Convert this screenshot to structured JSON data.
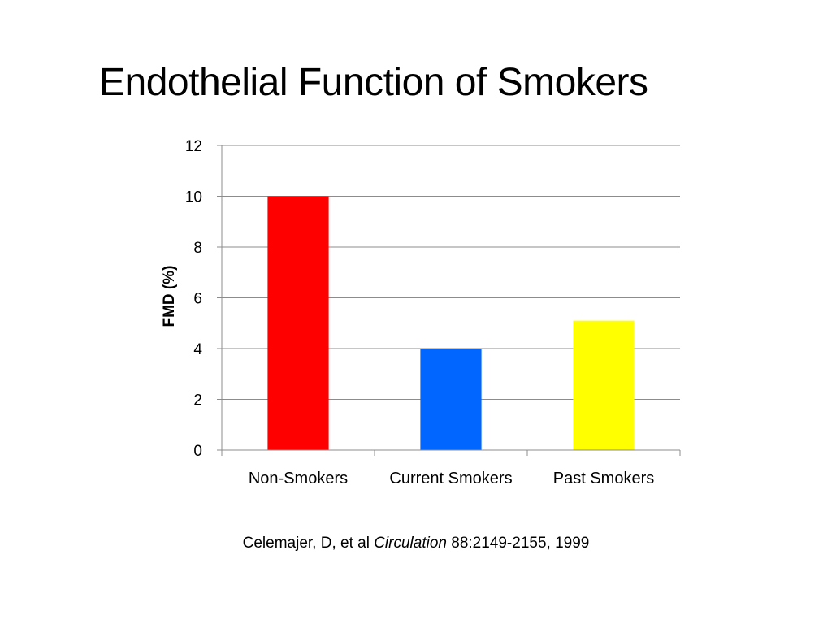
{
  "slide": {
    "title": "Endothelial Function of Smokers"
  },
  "chart_data": {
    "type": "bar",
    "title": "",
    "xlabel": "",
    "ylabel": "FMD (%)",
    "categories": [
      "Non-Smokers",
      "Current Smokers",
      "Past Smokers"
    ],
    "values": [
      10,
      4,
      5.1
    ],
    "colors": [
      "#FF0000",
      "#0066FF",
      "#FFFF00"
    ],
    "ylim": [
      0,
      12
    ],
    "yticks": [
      0,
      2,
      4,
      6,
      8,
      10,
      12
    ],
    "grid": true,
    "legend": "none"
  },
  "citation": {
    "authors": "Celemajer, D, et al",
    "journal": "Circulation",
    "details": "88:2149-2155, 1999"
  }
}
